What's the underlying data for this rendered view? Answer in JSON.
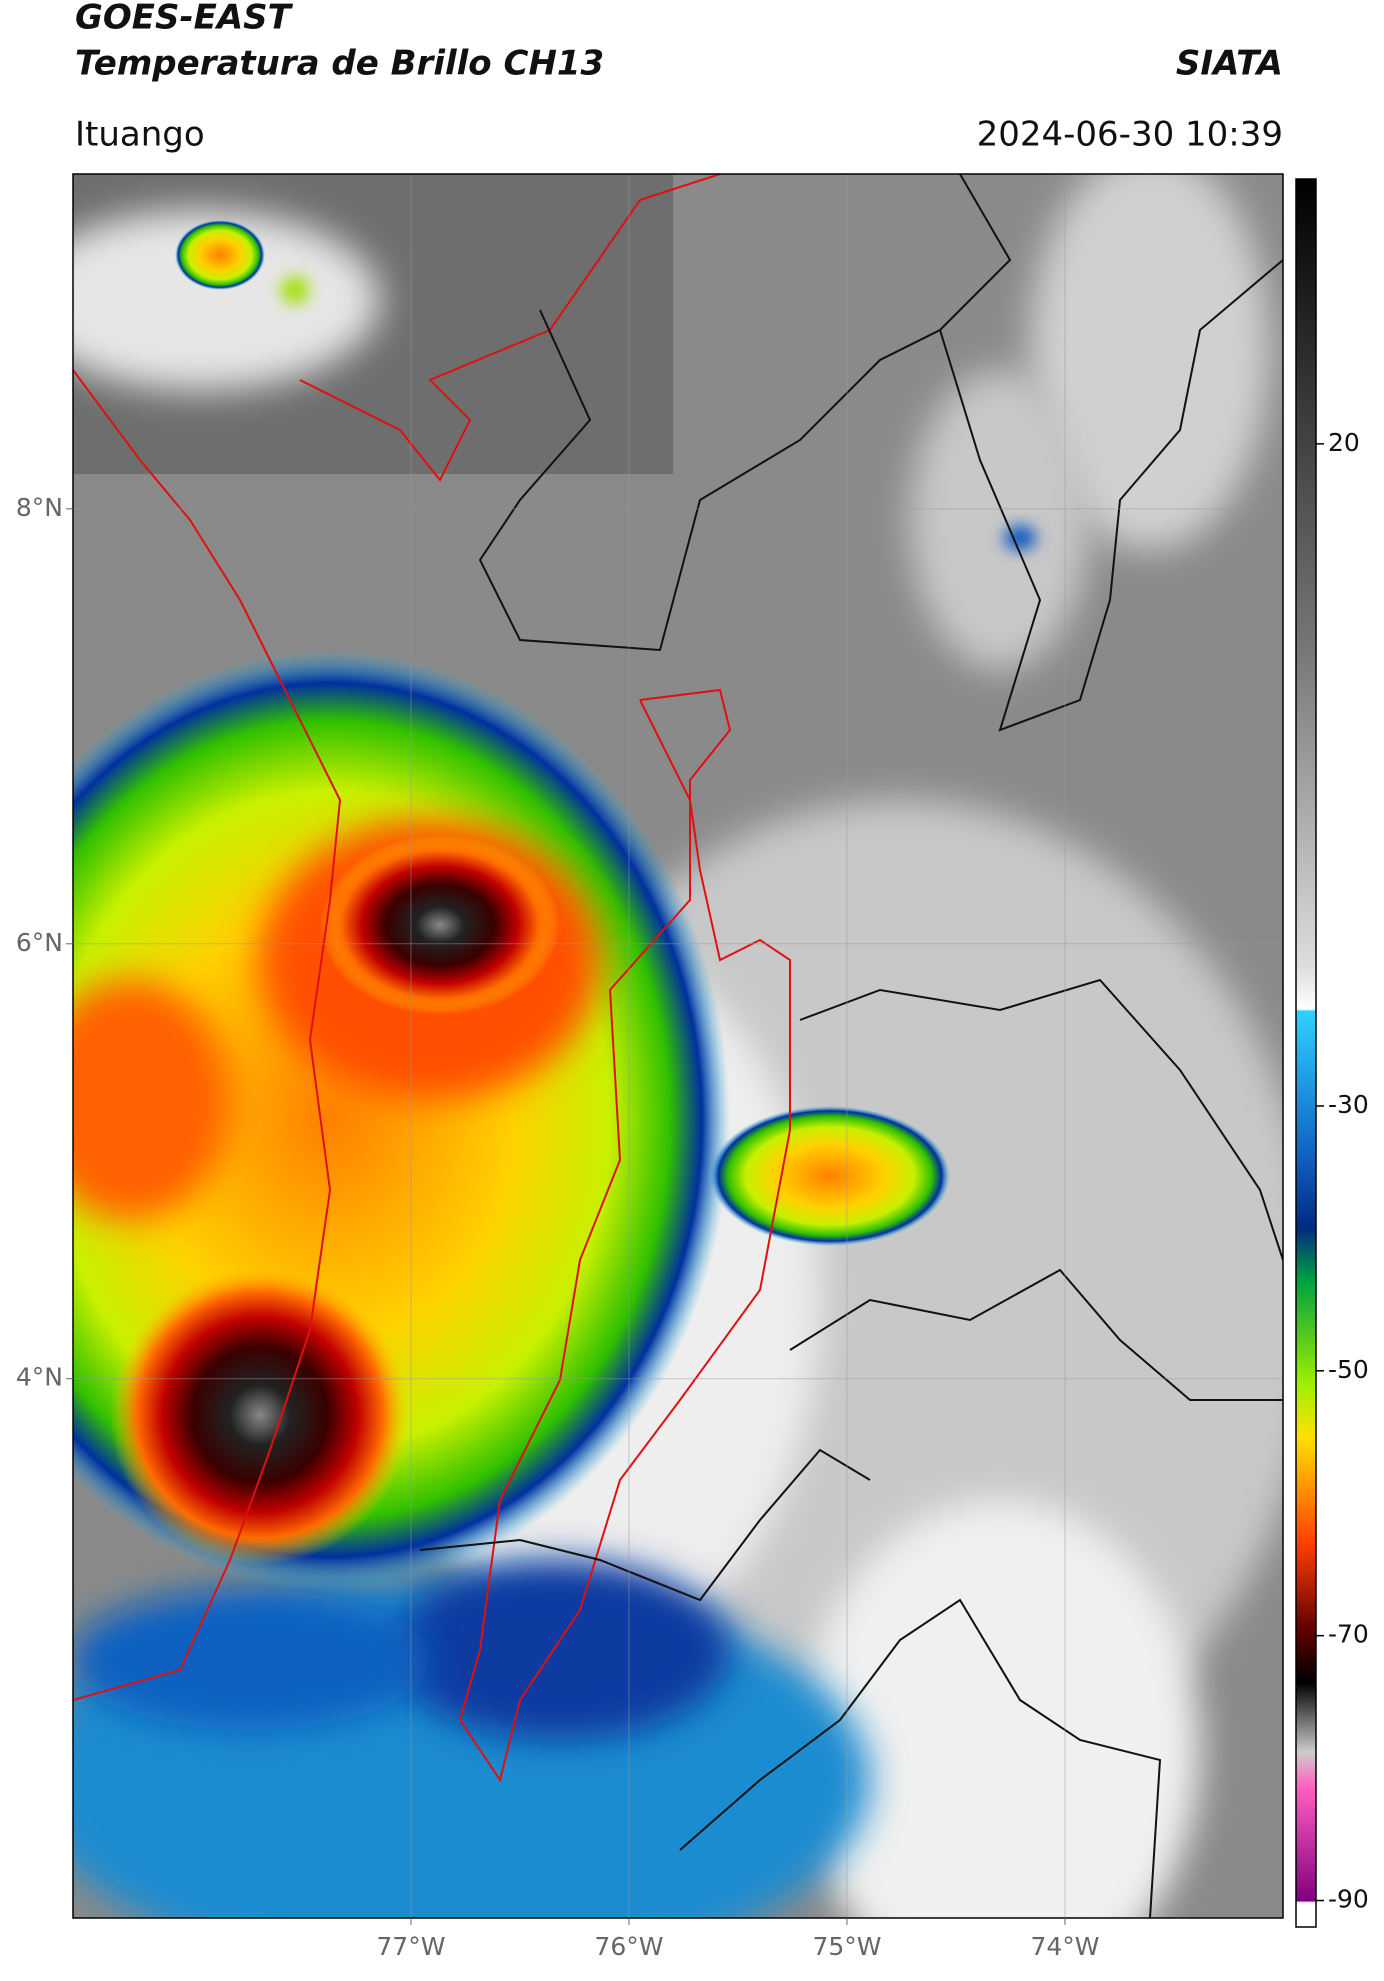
{
  "header": {
    "title": "GOES-EAST",
    "subtitle": "Temperatura de Brillo CH13",
    "source": "SIATA",
    "location": "Ituango",
    "timestamp": "2024-06-30 10:39"
  },
  "chart_data": {
    "type": "map",
    "grid": true,
    "xlim": [
      -78.55,
      -73.0
    ],
    "ylim": [
      1.52,
      9.54
    ],
    "xticks": [
      {
        "value": -77,
        "label": "77°W"
      },
      {
        "value": -76,
        "label": "76°W"
      },
      {
        "value": -75,
        "label": "75°W"
      },
      {
        "value": -74,
        "label": "74°W"
      }
    ],
    "yticks": [
      {
        "value": 8,
        "label": "8°N"
      },
      {
        "value": 6,
        "label": "6°N"
      },
      {
        "value": 4,
        "label": "4°N"
      }
    ],
    "colorbar": {
      "clim": [
        -92,
        40
      ],
      "ticks": [
        20,
        -30,
        -50,
        -70,
        -90
      ]
    }
  }
}
